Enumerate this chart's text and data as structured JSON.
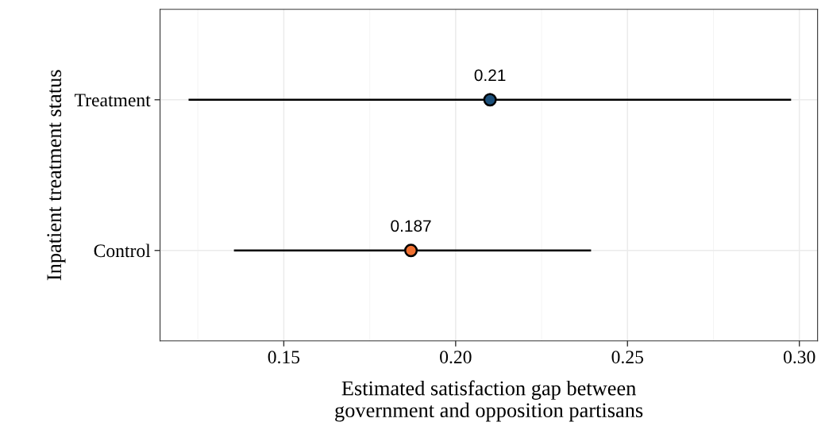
{
  "chart_data": {
    "type": "scatter",
    "orientation": "horizontal",
    "categories": [
      "Treatment",
      "Control"
    ],
    "values": [
      0.21,
      0.187
    ],
    "colors": [
      "#1b4f7a",
      "#f07030"
    ],
    "errors": [
      [
        0.1223,
        0.2976
      ],
      [
        0.1355,
        0.2394
      ]
    ],
    "data_labels": true,
    "xlim": [
      0.114,
      0.3053
    ],
    "xticks": [
      {
        "value": 0.15,
        "label": "0.15"
      },
      {
        "value": 0.2,
        "label": "0.20"
      },
      {
        "value": 0.25,
        "label": "0.25"
      },
      {
        "value": 0.3,
        "label": "0.30"
      }
    ],
    "xlabel": "Estimated satisfaction gap between\ngovernment and opposition partisans",
    "ylabel": "Inpatient treatment status",
    "marker": "circle",
    "grid": true,
    "legend": false
  }
}
